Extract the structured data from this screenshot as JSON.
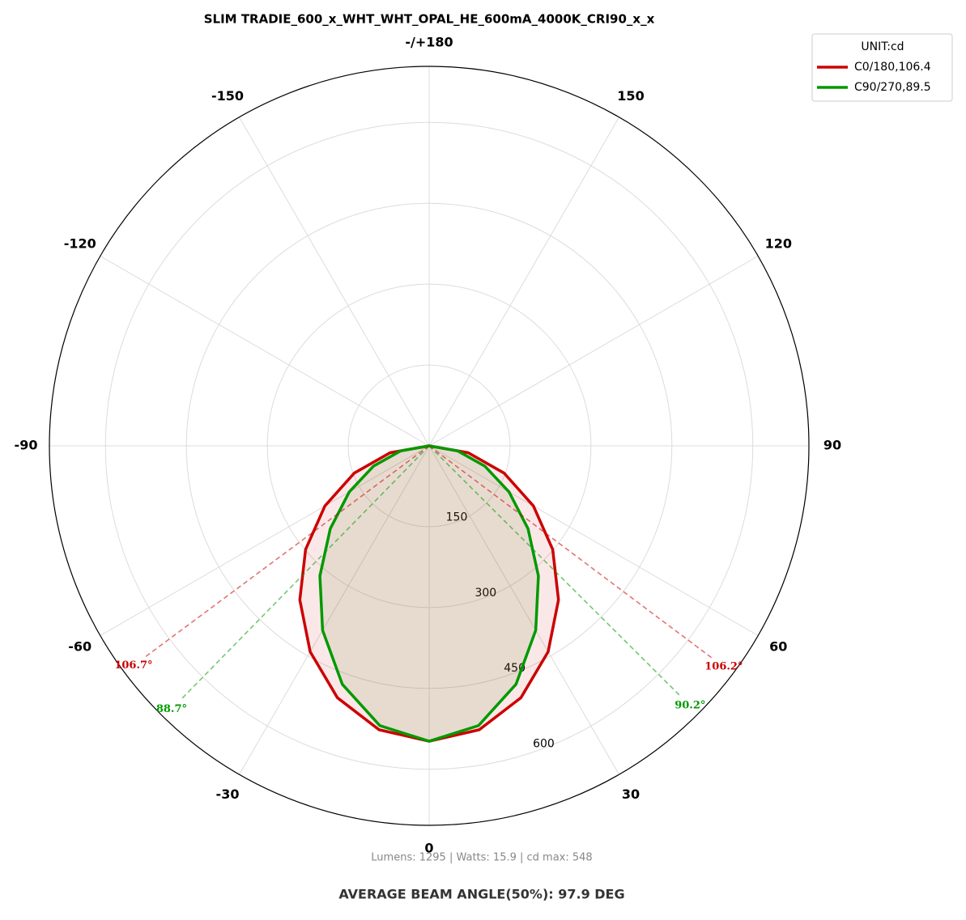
{
  "chart_data": {
    "type": "polar",
    "title": "SLIM TRADIE_600_x_WHT_WHT_OPAL_HE_600mA_4000K_CRI90_x_x",
    "x": [
      -90,
      -80,
      -70,
      -60,
      -50,
      -40,
      -30,
      -20,
      -10,
      0,
      10,
      20,
      30,
      40,
      50,
      60,
      70,
      80,
      90
    ],
    "series": [
      {
        "name": "C0/180,106.4",
        "color": "#cc0000",
        "fill": "rgba(204,0,0,0.09)",
        "values": [
          0,
          73.5,
          147.8,
          223.2,
          299,
          373,
          441.1,
          497.3,
          534.8,
          548,
          534.8,
          497.3,
          441.1,
          373,
          299,
          223.2,
          147.8,
          73.5,
          0
        ]
      },
      {
        "name": "C90/270,89.5",
        "color": "#009900",
        "fill": "rgba(110,130,50,0.13)",
        "values": [
          0,
          53.5,
          109.6,
          171,
          239.3,
          315.1,
          395.1,
          470.7,
          527,
          548,
          527,
          470.7,
          395.1,
          315.1,
          239.3,
          171,
          109.6,
          53.5,
          0
        ]
      }
    ],
    "rlim": [
      0,
      704
    ],
    "rticks": [
      150,
      300,
      450,
      600
    ],
    "xticks": [
      0,
      30,
      60,
      90,
      120,
      150,
      {
        "value": 180,
        "label": "-/+180"
      },
      -150,
      -120,
      -90,
      -60,
      -30
    ],
    "grid": true,
    "legend_title": "UNIT:cd",
    "legend_position": "upper right",
    "beam_angles": [
      {
        "value": 106.7,
        "label": "106.7°",
        "side": "left",
        "series": 0
      },
      {
        "value": 106.2,
        "label": "106.2°",
        "side": "right",
        "series": 0
      },
      {
        "value": 88.7,
        "label": "88.7°",
        "side": "left",
        "series": 1
      },
      {
        "value": 90.2,
        "label": "90.2°",
        "side": "right",
        "series": 1
      }
    ],
    "footnote": "Lumens: 1295  |  Watts: 15.9  |  cd max: 548",
    "footer": "AVERAGE BEAM ANGLE(50%): 97.9 DEG"
  }
}
